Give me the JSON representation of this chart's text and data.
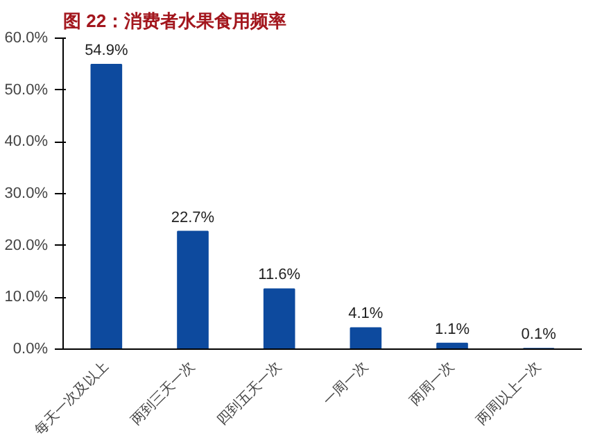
{
  "chart_data": {
    "type": "bar",
    "title": "图 22：消费者水果食用频率",
    "categories": [
      "每天一次及以上",
      "两到三天一次",
      "四到五天一次",
      "一周一次",
      "两周一次",
      "两周以上一次"
    ],
    "values": [
      54.9,
      22.7,
      11.6,
      4.1,
      1.1,
      0.1
    ],
    "value_labels": [
      "54.9%",
      "22.7%",
      "11.6%",
      "4.1%",
      "1.1%",
      "0.1%"
    ],
    "color": "#0d4a9e",
    "ylim": [
      0,
      60
    ],
    "yticks": [
      {
        "value": 0,
        "label": "0.0%"
      },
      {
        "value": 10,
        "label": "10.0%"
      },
      {
        "value": 20,
        "label": "20.0%"
      },
      {
        "value": 30,
        "label": "30.0%"
      },
      {
        "value": 40,
        "label": "40.0%"
      },
      {
        "value": 50,
        "label": "50.0%"
      },
      {
        "value": 60,
        "label": "60.0%"
      }
    ],
    "grid": false
  }
}
